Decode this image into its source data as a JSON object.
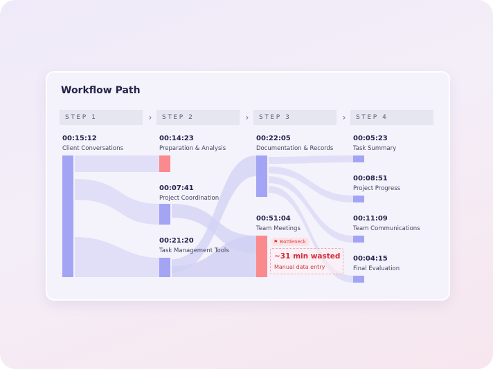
{
  "header": {
    "title": "Workflow Path"
  },
  "steps": [
    {
      "label": "STEP 1"
    },
    {
      "label": "STEP 2"
    },
    {
      "label": "STEP 3"
    },
    {
      "label": "STEP 4"
    }
  ],
  "nodes": {
    "client": {
      "time": "00:15:12",
      "label": "Client Conversations"
    },
    "prep": {
      "time": "00:14:23",
      "label": "Preparation & Analysis"
    },
    "coord": {
      "time": "00:07:41",
      "label": "Project Coordination"
    },
    "taskmgmt": {
      "time": "00:21:20",
      "label": "Task Management Tools"
    },
    "docs": {
      "time": "00:22:05",
      "label": "Documentation & Records"
    },
    "meetings": {
      "time": "00:51:04",
      "label": "Team Meetings"
    },
    "summary": {
      "time": "00:05:23",
      "label": "Task Summary"
    },
    "progress": {
      "time": "00:08:51",
      "label": "Project Progress"
    },
    "comms": {
      "time": "00:11:09",
      "label": "Team Communications"
    },
    "final": {
      "time": "00:04:15",
      "label": "Final Evaluation"
    }
  },
  "bottleneck": {
    "badge": "Bottleneck",
    "headline": "~31 min wasted",
    "detail": "Manual data entry"
  },
  "colors": {
    "node": "#a4a4f4",
    "bottleneck_node": "#fb8a8e",
    "link": "#dcdcf6",
    "link_strong": "#cfcff4",
    "accent_red": "#d42a35"
  }
}
